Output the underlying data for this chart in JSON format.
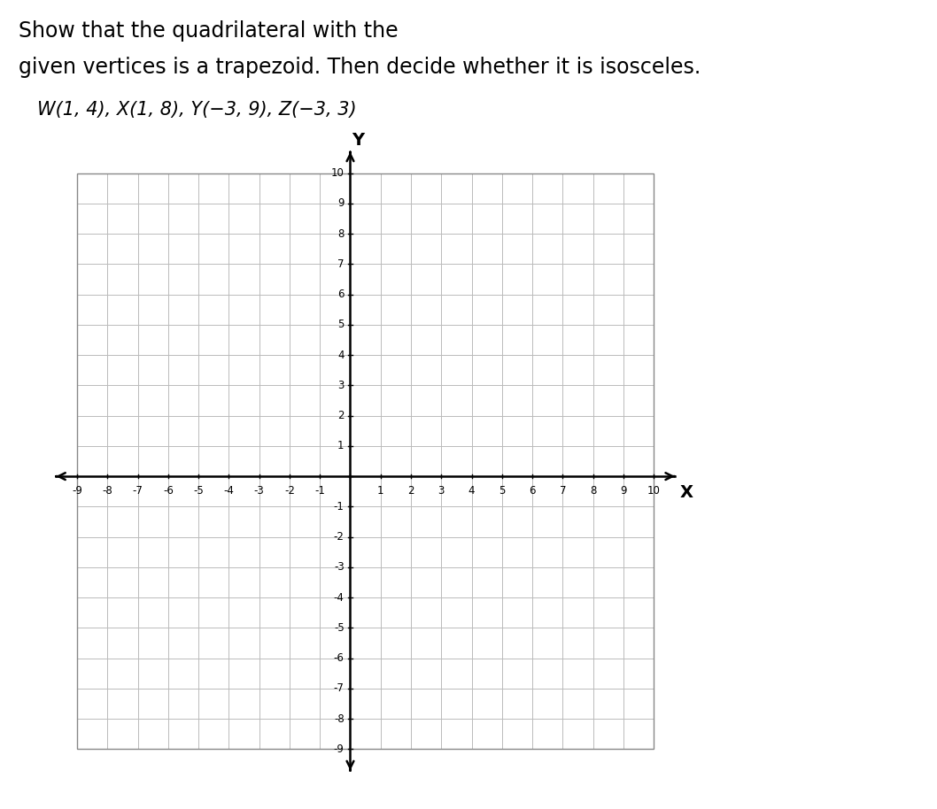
{
  "title_line1": "Show that the quadrilateral with the",
  "title_line2": "given vertices is a trapezoid. Then decide whether it is isosceles.",
  "subtitle": "W(1, 4), X(1, 8), Y(−3, 9), Z(−3, 3)",
  "xmin": -9,
  "xmax": 10,
  "ymin": -9,
  "ymax": 10,
  "grid_color": "#bbbbbb",
  "axis_color": "#000000",
  "background_color": "#ffffff",
  "tick_fontsize": 8.5,
  "label_fontsize": 14,
  "title_fontsize": 17,
  "subtitle_fontsize": 15,
  "xlabel": "X",
  "ylabel": "Y"
}
